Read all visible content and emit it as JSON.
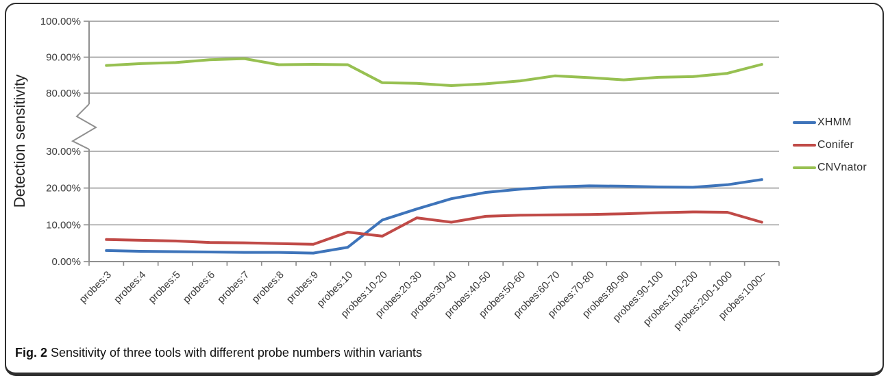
{
  "figure": {
    "caption_label": "Fig. 2",
    "caption_text": "Sensitivity of three tools with different probe numbers within variants"
  },
  "chart_data": {
    "type": "line",
    "title": "",
    "xlabel": "",
    "ylabel": "Detection sensitivity",
    "grid": true,
    "legend_position": "right",
    "y_axis": {
      "unit": "%",
      "broken_axis": true,
      "break_between": [
        30,
        80
      ],
      "tick_values": [
        100,
        90,
        80,
        30,
        20,
        10,
        0
      ],
      "tick_labels": [
        "100.00%",
        "90.00%",
        "80.00%",
        "30.00%",
        "20.00%",
        "10.00%",
        "0.00%"
      ]
    },
    "categories": [
      "probes:3",
      "probes:4",
      "probes:5",
      "probes:6",
      "probes:7",
      "probes:8",
      "probes:9",
      "probes:10",
      "probes:10-20",
      "probes:20-30",
      "probes:30-40",
      "probes:40-50",
      "probes:50-60",
      "probes:60-70",
      "probes:70-80",
      "probes:80-90",
      "probes:90-100",
      "probes:100-200",
      "probes:200-1000",
      "probes:1000~"
    ],
    "series": [
      {
        "name": "XHMM",
        "color": "#3E74BA",
        "values": [
          3.0,
          2.8,
          2.7,
          2.6,
          2.5,
          2.5,
          2.3,
          3.9,
          11.3,
          14.3,
          17.1,
          18.8,
          19.7,
          20.3,
          20.6,
          20.5,
          20.3,
          20.2,
          20.9,
          22.3
        ]
      },
      {
        "name": "Conifer",
        "color": "#C04A47",
        "values": [
          6.0,
          5.8,
          5.6,
          5.2,
          5.1,
          4.9,
          4.7,
          8.0,
          6.9,
          11.9,
          10.7,
          12.3,
          12.6,
          12.7,
          12.8,
          13.0,
          13.3,
          13.5,
          13.4,
          10.7
        ]
      },
      {
        "name": "CNVnator",
        "color": "#97C051",
        "values": [
          87.7,
          88.2,
          88.5,
          89.3,
          89.6,
          87.9,
          88.0,
          87.9,
          82.9,
          82.7,
          82.1,
          82.6,
          83.4,
          84.8,
          84.3,
          83.7,
          84.4,
          84.6,
          85.5,
          88.0
        ]
      }
    ]
  }
}
